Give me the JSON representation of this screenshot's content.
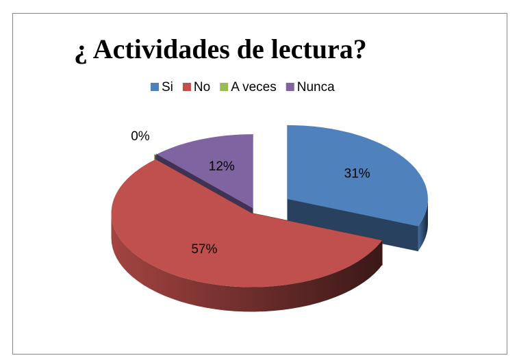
{
  "chart_data": {
    "type": "pie",
    "title": "¿ Actividades de lectura?",
    "categories": [
      "Si",
      "No",
      "A veces",
      "Nunca"
    ],
    "values": [
      31,
      57,
      0,
      12
    ],
    "value_labels": [
      "31%",
      "57%",
      "0%",
      "12%"
    ],
    "colors": [
      "#4f81bd",
      "#c0504d",
      "#9bbb59",
      "#8064a2"
    ],
    "legend": "top"
  }
}
